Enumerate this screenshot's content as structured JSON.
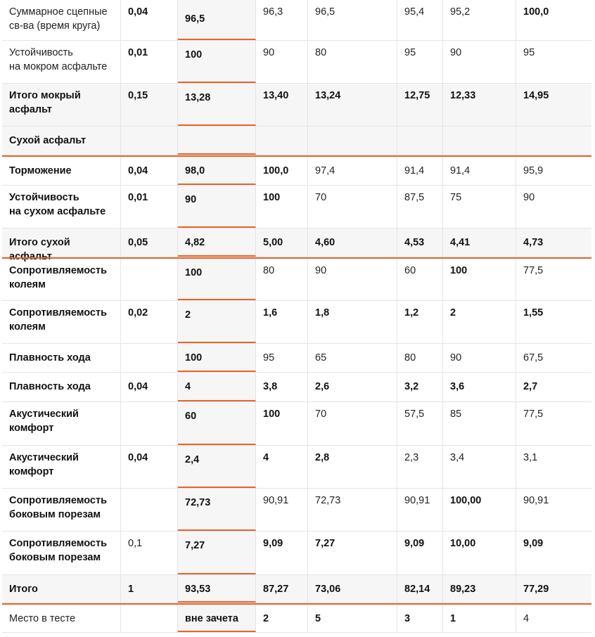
{
  "columns": [
    "label",
    "weight",
    "ref",
    "c1",
    "c2",
    "c3",
    "c4",
    "c5"
  ],
  "rows": [
    {
      "cells": [
        "Суммарное сцепные\nсв-ва (время круга)",
        "0,04",
        "96,5",
        "96,3",
        "96,5",
        "95,4",
        "95,2",
        "100,0"
      ],
      "bold": [
        false,
        true,
        true,
        false,
        false,
        false,
        false,
        true
      ]
    },
    {
      "cells": [
        "Устойчивость\nна мокром асфальте",
        "0,01",
        "100",
        "90",
        "80",
        "95",
        "90",
        "95"
      ],
      "bold": [
        false,
        true,
        true,
        false,
        false,
        false,
        false,
        false
      ]
    },
    {
      "cells": [
        "Итого мокрый\nасфальт",
        "0,15",
        "13,28",
        "13,40",
        "13,24",
        "12,75",
        "12,33",
        "14,95"
      ],
      "bold": [
        true,
        true,
        true,
        true,
        true,
        true,
        true,
        true
      ]
    },
    {
      "cells": [
        "Сухой асфальт",
        "",
        "",
        "",
        "",
        "",
        "",
        ""
      ],
      "bold": [
        true,
        false,
        false,
        false,
        false,
        false,
        false,
        false
      ]
    },
    {
      "cells": [
        "Торможение",
        "0,04",
        "98,0",
        "100,0",
        "97,4",
        "91,4",
        "91,4",
        "95,9"
      ],
      "bold": [
        true,
        true,
        true,
        true,
        false,
        false,
        false,
        false
      ]
    },
    {
      "cells": [
        "Устойчивость\nна сухом асфальте",
        "0,01",
        "90",
        "100",
        "70",
        "87,5",
        "75",
        "90"
      ],
      "bold": [
        true,
        true,
        true,
        true,
        false,
        false,
        false,
        false
      ]
    },
    {
      "cells": [
        "Итого сухой асфальт",
        "0,05",
        "4,82",
        "5,00",
        "4,60",
        "4,53",
        "4,41",
        "4,73"
      ],
      "bold": [
        true,
        true,
        true,
        true,
        true,
        true,
        true,
        true
      ]
    },
    {
      "cells": [
        "Сопротивляемость\nколеям",
        "",
        "100",
        "80",
        "90",
        "60",
        "100",
        "77,5"
      ],
      "bold": [
        true,
        false,
        true,
        false,
        false,
        false,
        true,
        false
      ]
    },
    {
      "cells": [
        "Сопротивляемость\nколеям",
        "0,02",
        "2",
        "1,6",
        "1,8",
        "1,2",
        "2",
        "1,55"
      ],
      "bold": [
        true,
        true,
        true,
        true,
        true,
        true,
        true,
        true
      ]
    },
    {
      "cells": [
        "Плавность хода",
        "",
        "100",
        "95",
        "65",
        "80",
        "90",
        "67,5"
      ],
      "bold": [
        true,
        false,
        true,
        false,
        false,
        false,
        false,
        false
      ]
    },
    {
      "cells": [
        "Плавность хода",
        "0,04",
        "4",
        "3,8",
        "2,6",
        "3,2",
        "3,6",
        "2,7"
      ],
      "bold": [
        true,
        true,
        true,
        true,
        true,
        true,
        true,
        true
      ]
    },
    {
      "cells": [
        "Акустический\nкомфорт",
        "",
        "60",
        "100",
        "70",
        "57,5",
        "85",
        "77,5"
      ],
      "bold": [
        true,
        false,
        true,
        true,
        false,
        false,
        false,
        false
      ]
    },
    {
      "cells": [
        "Акустический\nкомфорт",
        "0,04",
        "2,4",
        "4",
        "2,8",
        "2,3",
        "3,4",
        "3,1"
      ],
      "bold": [
        true,
        true,
        true,
        true,
        true,
        false,
        false,
        false
      ]
    },
    {
      "cells": [
        "Сопротивляемость\nбоковым порезам",
        "",
        "72,73",
        "90,91",
        "72,73",
        "90,91",
        "100,00",
        "90,91"
      ],
      "bold": [
        true,
        false,
        true,
        false,
        false,
        false,
        true,
        false
      ]
    },
    {
      "cells": [
        "Сопротивляемость\nбоковым порезам",
        "0,1",
        "7,27",
        "9,09",
        "7,27",
        "9,09",
        "10,00",
        "9,09"
      ],
      "bold": [
        true,
        false,
        true,
        true,
        true,
        true,
        true,
        true
      ]
    },
    {
      "cells": [
        "Итого",
        "1",
        "93,53",
        "87,27",
        "73,06",
        "82,14",
        "89,23",
        "77,29"
      ],
      "bold": [
        true,
        true,
        true,
        true,
        true,
        true,
        true,
        true
      ]
    },
    {
      "cells": [
        "Место в тесте",
        "",
        "вне зачета",
        "2",
        "5",
        "3",
        "1",
        "4"
      ],
      "bold": [
        false,
        false,
        true,
        true,
        true,
        true,
        true,
        false
      ]
    }
  ]
}
